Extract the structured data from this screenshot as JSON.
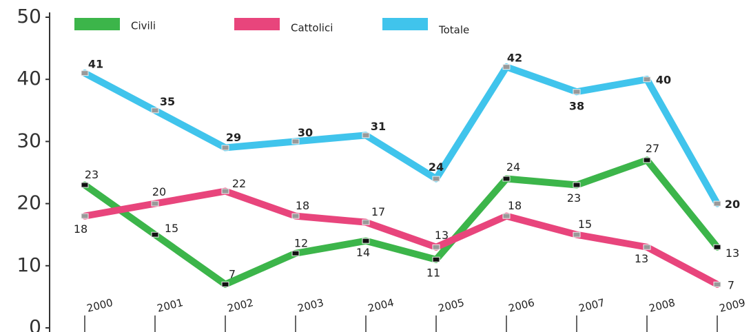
{
  "chart_data": {
    "type": "line",
    "categories": [
      "2000",
      "2001",
      "2002",
      "2003",
      "2004",
      "2005",
      "2006",
      "2007",
      "2008",
      "2009"
    ],
    "series": [
      {
        "name": "Civili",
        "color": "#3cb54a",
        "values": [
          23,
          15,
          7,
          12,
          14,
          11,
          24,
          23,
          27,
          13
        ]
      },
      {
        "name": "Cattolici",
        "color": "#e8457c",
        "values": [
          18,
          20,
          22,
          18,
          17,
          13,
          18,
          15,
          13,
          7
        ]
      },
      {
        "name": "Totale",
        "color": "#40c4ec",
        "values": [
          41,
          35,
          29,
          30,
          31,
          24,
          42,
          38,
          40,
          20
        ]
      }
    ],
    "ylim": [
      0,
      50
    ],
    "yticks": [
      0,
      10,
      20,
      30,
      40,
      50
    ],
    "grid": false
  }
}
